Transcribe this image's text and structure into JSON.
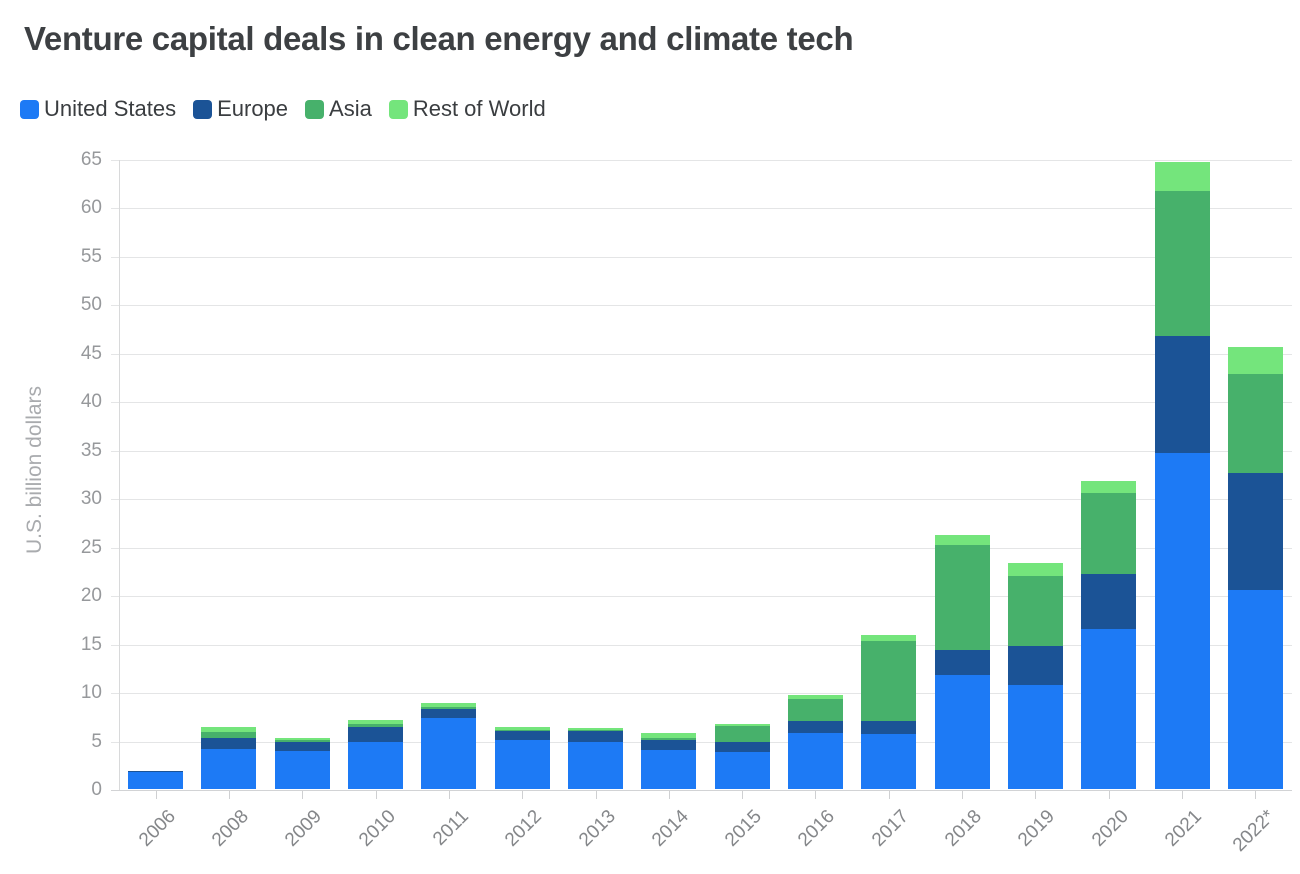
{
  "chart_data": {
    "type": "bar",
    "stacked": true,
    "title": "Venture capital deals in clean energy and climate tech",
    "ylabel": "U.S. billion dollars",
    "ylim": [
      0,
      65
    ],
    "ytick_step": 5,
    "grid": true,
    "legend_position": "top",
    "categories": [
      "2006",
      "2008",
      "2009",
      "2010",
      "2011",
      "2012",
      "2013",
      "2014",
      "2015",
      "2016",
      "2017",
      "2018",
      "2019",
      "2020",
      "2021",
      "2022*"
    ],
    "series": [
      {
        "name": "United States",
        "color": "#1d7af5",
        "values": [
          1.8,
          4.1,
          3.9,
          4.9,
          7.3,
          5.1,
          4.8,
          4.0,
          3.8,
          5.8,
          5.7,
          11.8,
          10.7,
          16.5,
          34.7,
          20.5
        ]
      },
      {
        "name": "Europe",
        "color": "#1b5396",
        "values": [
          0.1,
          1.2,
          0.9,
          1.5,
          1.0,
          0.9,
          1.2,
          1.1,
          1.0,
          1.2,
          1.3,
          2.5,
          4.1,
          5.7,
          12.0,
          12.1
        ]
      },
      {
        "name": "Asia",
        "color": "#47b16b",
        "values": [
          0,
          0.6,
          0.3,
          0.3,
          0.2,
          0.1,
          0.1,
          0.2,
          1.7,
          2.3,
          8.3,
          10.9,
          7.2,
          8.3,
          15.0,
          10.2
        ]
      },
      {
        "name": "Rest of World",
        "color": "#74e57c",
        "values": [
          0,
          0.5,
          0.2,
          0.4,
          0.4,
          0.3,
          0.2,
          0.5,
          0.2,
          0.4,
          0.6,
          1.0,
          1.3,
          1.3,
          3.0,
          2.8
        ]
      }
    ]
  }
}
